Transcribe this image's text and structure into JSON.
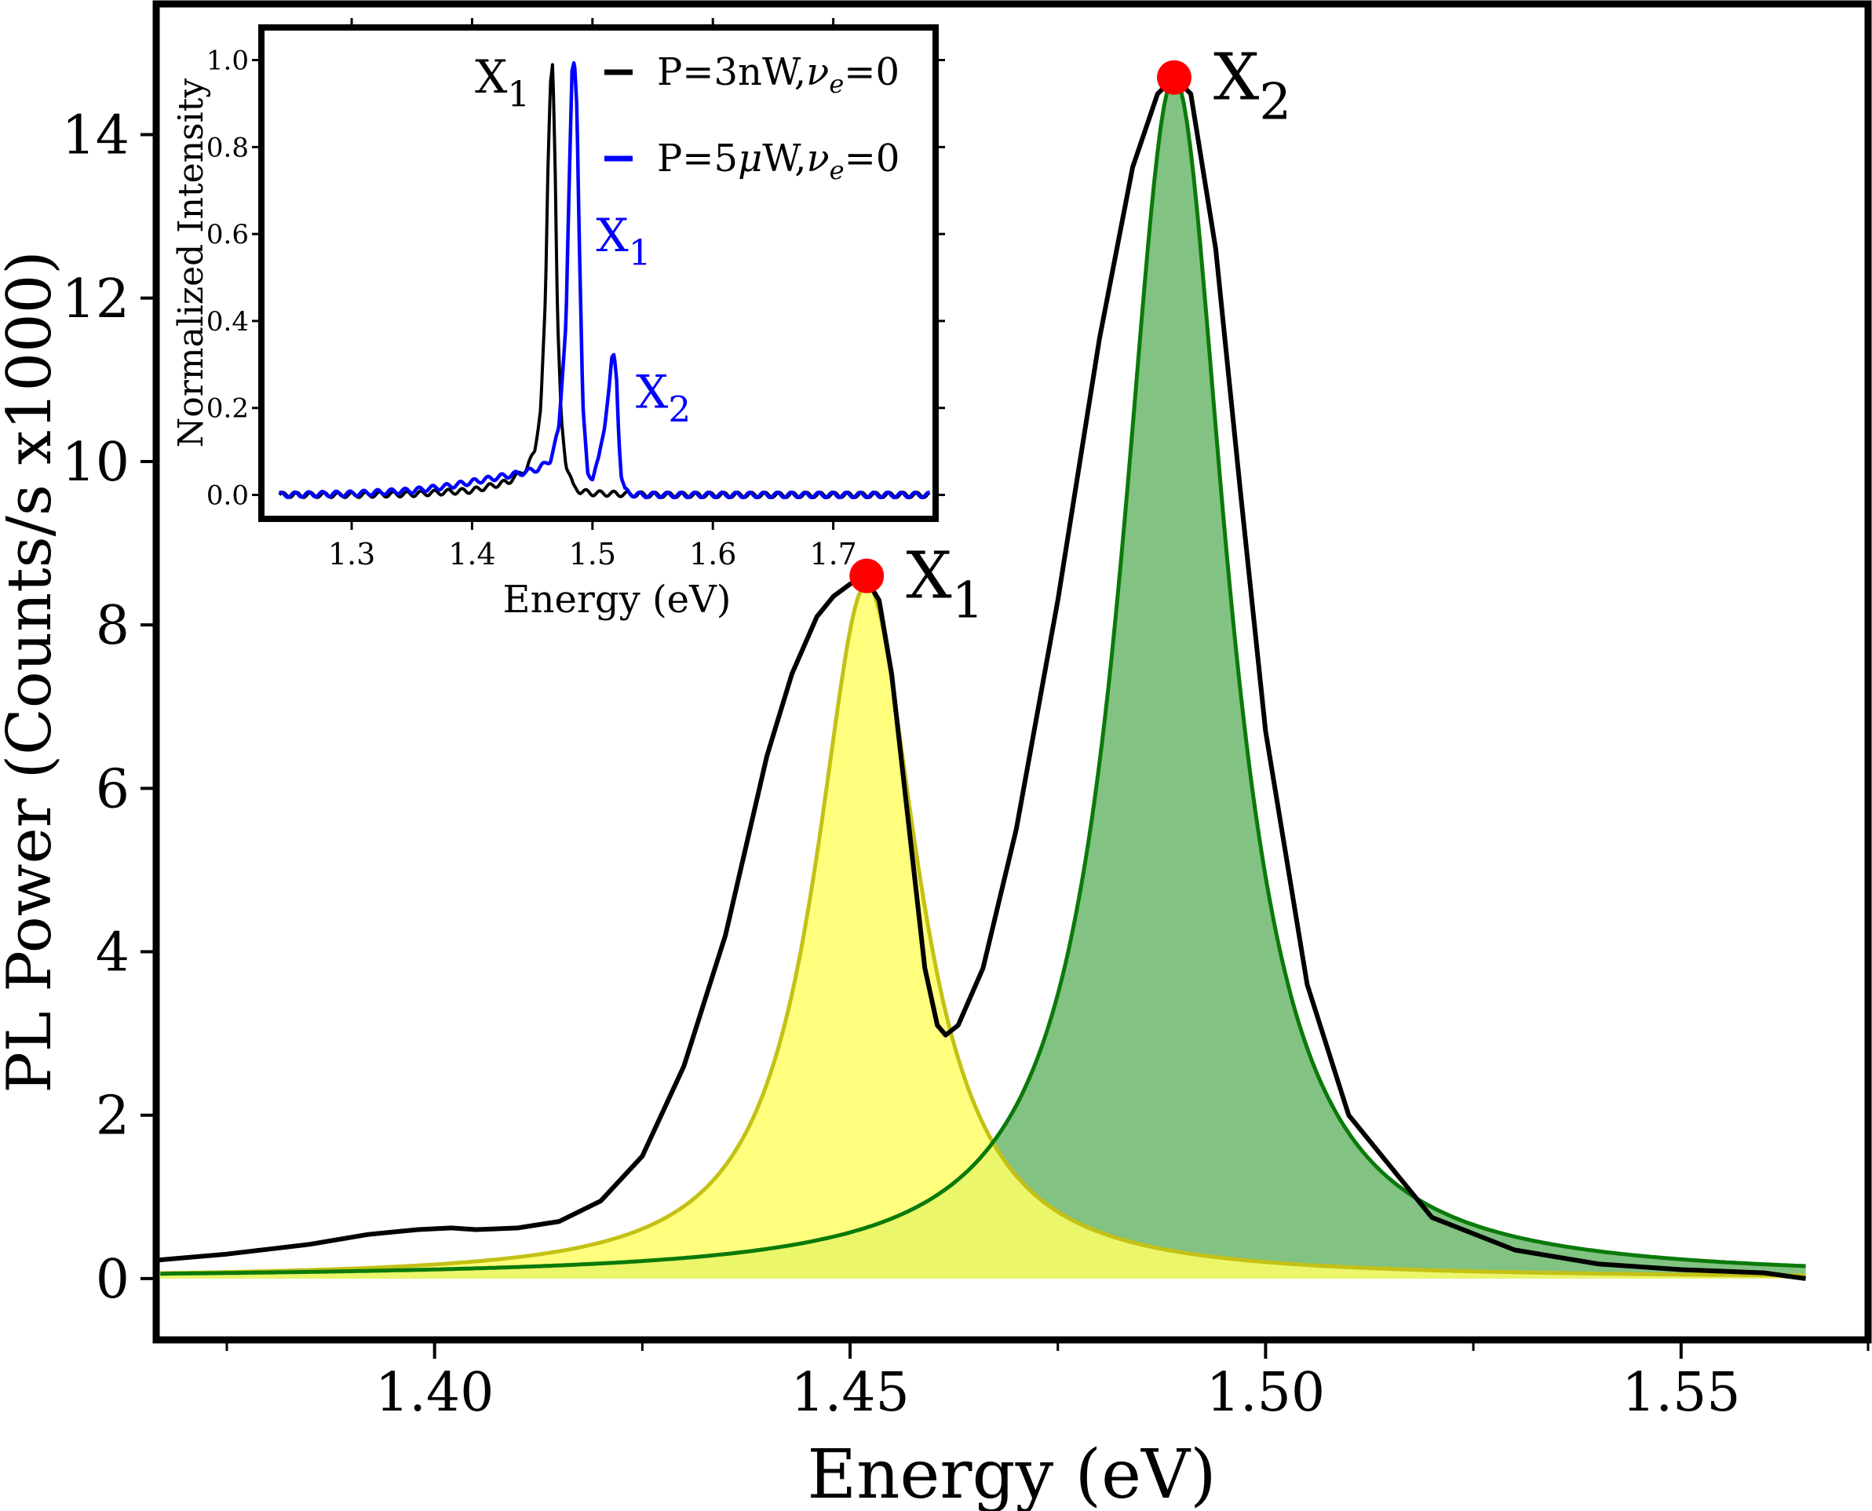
{
  "chart_data": [
    {
      "type": "line",
      "role": "main",
      "xlabel": "Energy (eV)",
      "ylabel": "PL Power (Counts/s x1000)",
      "xlim": [
        1.3665,
        1.5725
      ],
      "ylim": [
        -0.75,
        15.6
      ],
      "xticks": [
        1.4,
        1.45,
        1.5,
        1.55
      ],
      "xtick_labels": [
        "1.40",
        "1.45",
        "1.50",
        "1.55"
      ],
      "xminor_ticks": [
        1.375,
        1.425,
        1.475,
        1.525,
        1.5725
      ],
      "yticks": [
        0,
        2,
        4,
        6,
        8,
        10,
        12,
        14
      ],
      "ytick_labels": [
        "0",
        "2",
        "4",
        "6",
        "8",
        "10",
        "12",
        "14"
      ],
      "grid": false,
      "series": [
        {
          "kind": "measured",
          "color": "#000000",
          "x": [
            1.366,
            1.375,
            1.385,
            1.392,
            1.398,
            1.402,
            1.405,
            1.41,
            1.415,
            1.42,
            1.425,
            1.43,
            1.435,
            1.44,
            1.443,
            1.446,
            1.448,
            1.45,
            1.451,
            1.452,
            1.4535,
            1.455,
            1.457,
            1.459,
            1.4605,
            1.4615,
            1.463,
            1.466,
            1.47,
            1.475,
            1.48,
            1.484,
            1.487,
            1.489,
            1.491,
            1.494,
            1.497,
            1.5,
            1.505,
            1.51,
            1.52,
            1.53,
            1.54,
            1.55,
            1.56,
            1.5635,
            1.565
          ],
          "y": [
            0.22,
            0.3,
            0.42,
            0.54,
            0.6,
            0.62,
            0.6,
            0.62,
            0.7,
            0.95,
            1.5,
            2.6,
            4.2,
            6.4,
            7.4,
            8.1,
            8.35,
            8.5,
            8.55,
            8.55,
            8.3,
            7.4,
            5.6,
            3.8,
            3.1,
            2.98,
            3.1,
            3.8,
            5.5,
            8.3,
            11.5,
            13.6,
            14.5,
            14.7,
            14.5,
            12.6,
            9.6,
            6.7,
            3.6,
            2.0,
            0.75,
            0.35,
            0.18,
            0.11,
            0.07,
            0.02,
            0.0
          ]
        },
        {
          "kind": "lorentzian-fit",
          "peak": "X1",
          "color": "#c4c116",
          "fill": "#ffff66",
          "fill_opacity": 0.85,
          "center": 1.452,
          "amplitude": 8.5,
          "hwhm": 0.0075
        },
        {
          "kind": "lorentzian-fit",
          "peak": "X2",
          "color": "#0a7a0a",
          "fill": "#2e9a2e",
          "fill_opacity": 0.6,
          "center": 1.489,
          "amplitude": 14.7,
          "hwhm": 0.0078
        }
      ],
      "peaks": [
        {
          "x": 1.452,
          "y": 8.6,
          "label_base": "X",
          "label_sub": "1",
          "marker_color": "#ff0000"
        },
        {
          "x": 1.489,
          "y": 14.7,
          "label_base": "X",
          "label_sub": "2",
          "marker_color": "#ff0000"
        }
      ]
    },
    {
      "type": "line",
      "role": "inset",
      "xlabel": "Energy (eV)",
      "ylabel": "Normalized Intensity",
      "xlim": [
        1.225,
        1.785
      ],
      "ylim": [
        -0.055,
        1.075
      ],
      "xticks": [
        1.3,
        1.4,
        1.5,
        1.6,
        1.7
      ],
      "xtick_labels": [
        "1.3",
        "1.4",
        "1.5",
        "1.6",
        "1.7"
      ],
      "yticks": [
        0.0,
        0.2,
        0.4,
        0.6,
        0.8,
        1.0
      ],
      "ytick_labels": [
        "0.0",
        "0.2",
        "0.4",
        "0.6",
        "0.8",
        "1.0"
      ],
      "grid": false,
      "legend_position": "top-right",
      "series": [
        {
          "name_parts": [
            "P=3nW,",
            "ν",
            "e",
            "=0"
          ],
          "color": "#000000",
          "x": [
            1.24,
            1.3,
            1.35,
            1.4,
            1.43,
            1.445,
            1.452,
            1.457,
            1.461,
            1.463,
            1.465,
            1.467,
            1.469,
            1.471,
            1.474,
            1.478,
            1.484,
            1.49,
            1.5,
            1.55,
            1.6,
            1.7,
            1.78
          ],
          "y": [
            0.0,
            0.0,
            0.002,
            0.01,
            0.03,
            0.06,
            0.1,
            0.2,
            0.45,
            0.75,
            0.95,
            1.0,
            0.75,
            0.4,
            0.18,
            0.07,
            0.02,
            0.008,
            0.004,
            0.0,
            0.0,
            0.0,
            0.0
          ]
        },
        {
          "name_parts": [
            "P=5",
            "μ",
            "W,",
            "ν",
            "e",
            "=0"
          ],
          "color": "#0000ff",
          "x": [
            1.24,
            1.3,
            1.35,
            1.38,
            1.4,
            1.42,
            1.44,
            1.455,
            1.465,
            1.472,
            1.478,
            1.481,
            1.483,
            1.485,
            1.487,
            1.489,
            1.492,
            1.496,
            1.5,
            1.505,
            1.51,
            1.514,
            1.516,
            1.518,
            1.52,
            1.522,
            1.524,
            1.527,
            1.535,
            1.6,
            1.7,
            1.78
          ],
          "y": [
            0.0,
            0.003,
            0.01,
            0.02,
            0.03,
            0.04,
            0.05,
            0.06,
            0.08,
            0.15,
            0.4,
            0.75,
            0.97,
            1.0,
            0.9,
            0.6,
            0.2,
            0.05,
            0.04,
            0.08,
            0.16,
            0.25,
            0.31,
            0.32,
            0.27,
            0.13,
            0.04,
            0.01,
            0.0,
            0.0,
            0.0,
            0.0
          ]
        }
      ],
      "annotations": [
        {
          "x": 1.435,
          "y": 0.965,
          "label_base": "X",
          "label_sub": "1",
          "color": "#000000"
        },
        {
          "x": 1.503,
          "y": 0.6,
          "label_base": "X",
          "label_sub": "1",
          "color": "#0000ff"
        },
        {
          "x": 1.536,
          "y": 0.24,
          "label_base": "X",
          "label_sub": "2",
          "color": "#0000ff"
        }
      ]
    }
  ]
}
